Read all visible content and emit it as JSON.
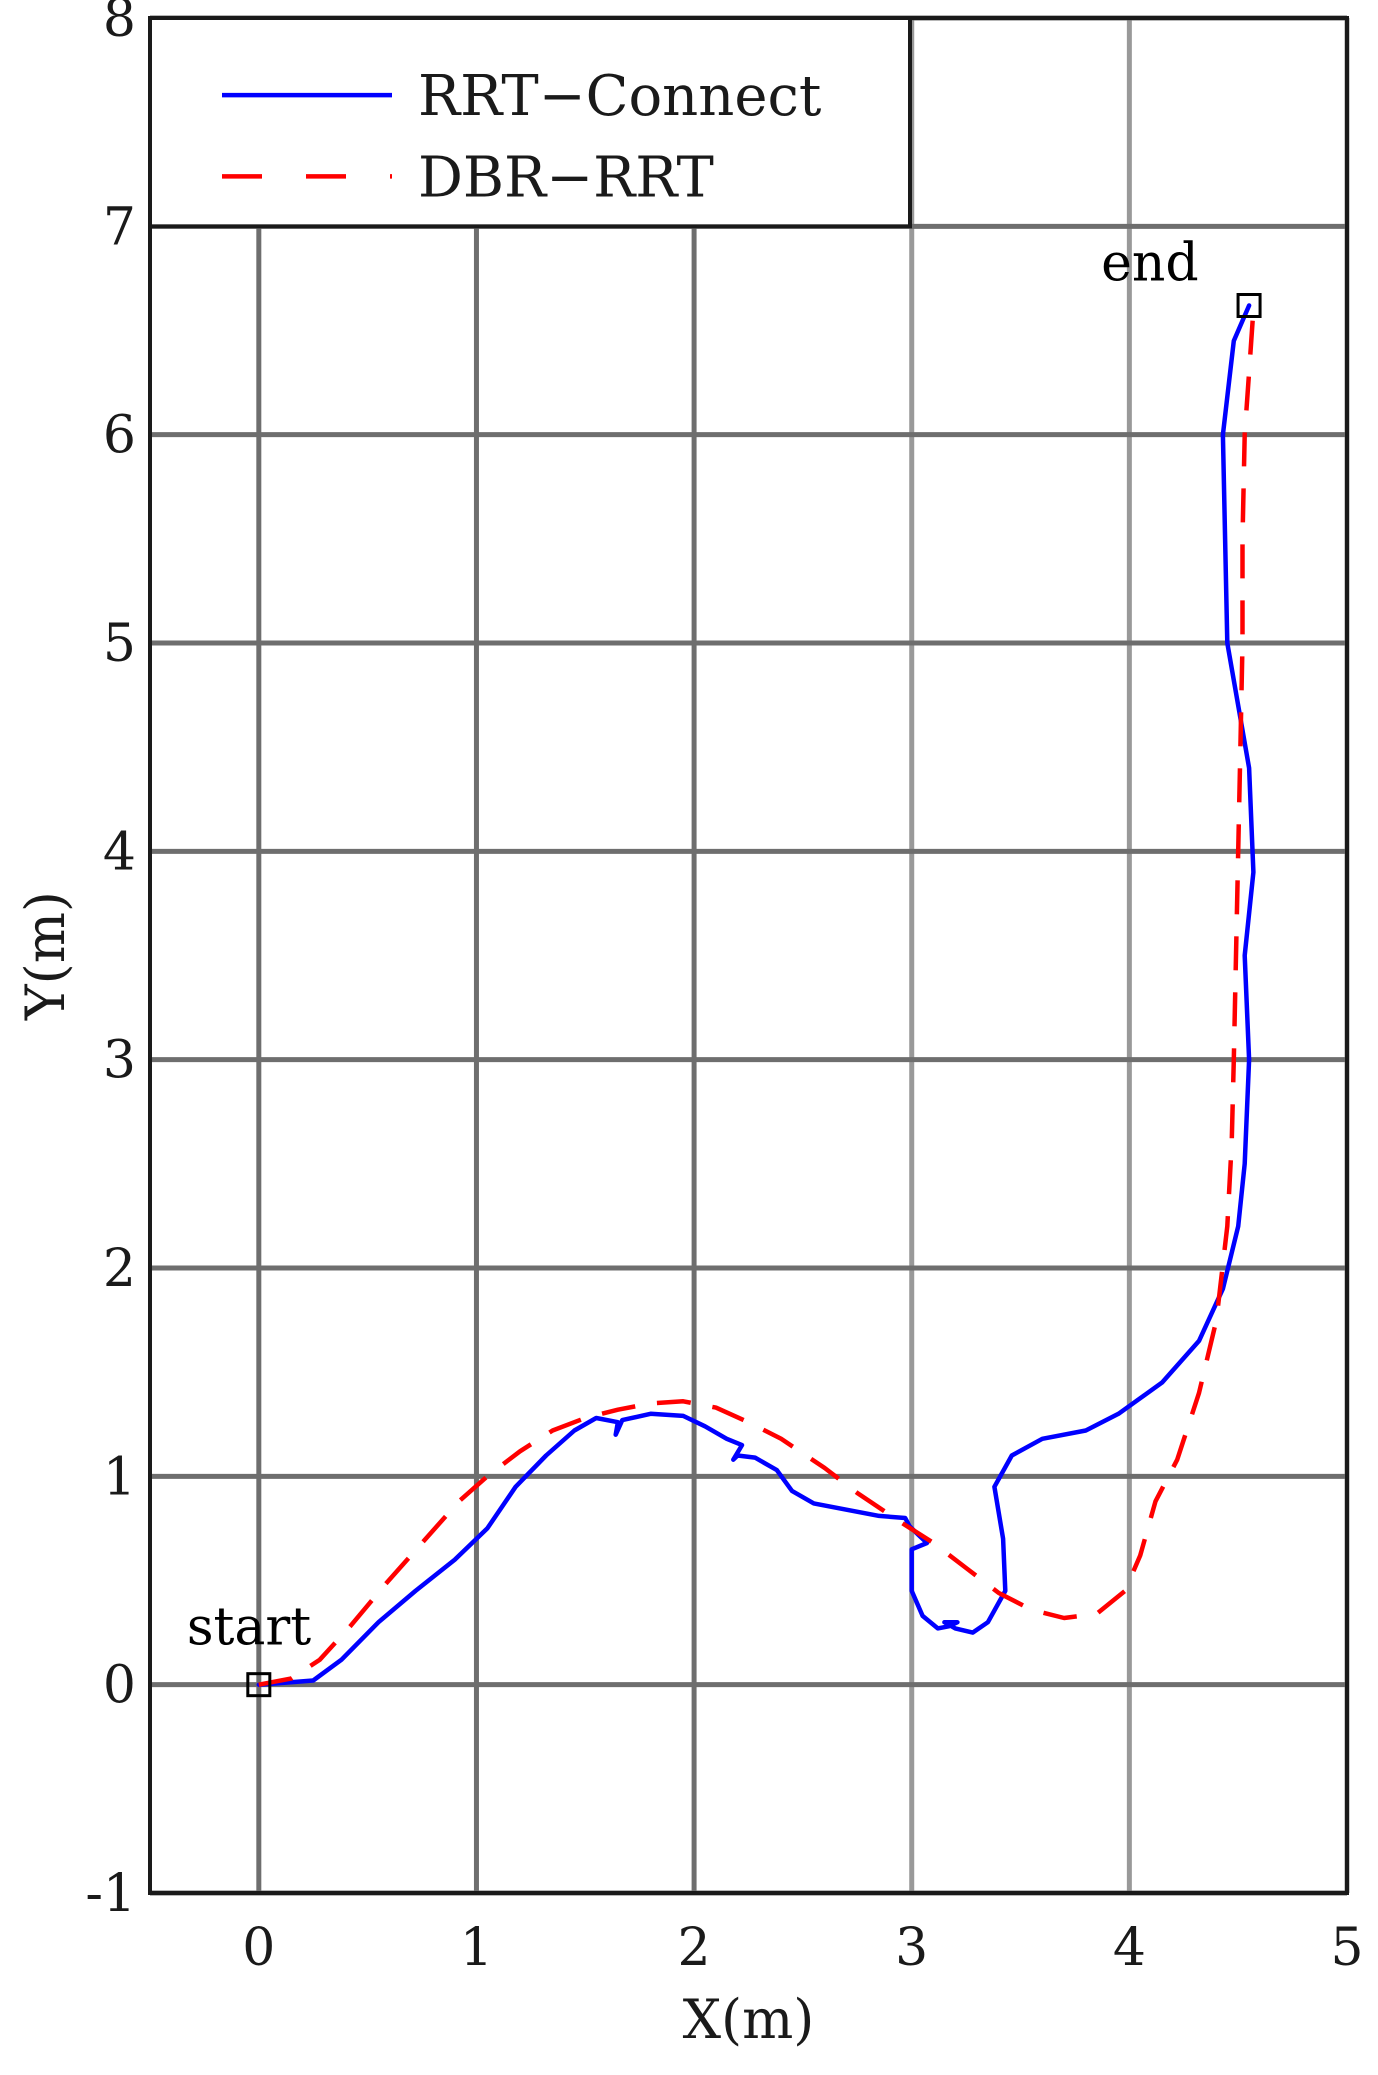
{
  "chart_data": {
    "type": "line",
    "xlabel": "X(m)",
    "ylabel": "Y(m)",
    "xlim": [
      -0.5,
      5
    ],
    "ylim": [
      -1,
      8
    ],
    "xticks": [
      "0",
      "1",
      "2",
      "3",
      "4",
      "5"
    ],
    "yticks": [
      "-1",
      "0",
      "1",
      "2",
      "3",
      "4",
      "5",
      "6",
      "7",
      "8"
    ],
    "grid": true,
    "legend_position": "top-left",
    "series": [
      {
        "name": "RRT−Connect",
        "color": "#0000ff",
        "style": "solid",
        "points": [
          [
            0.0,
            0.0
          ],
          [
            0.25,
            0.02
          ],
          [
            0.38,
            0.12
          ],
          [
            0.55,
            0.3
          ],
          [
            0.72,
            0.45
          ],
          [
            0.9,
            0.6
          ],
          [
            1.05,
            0.75
          ],
          [
            1.18,
            0.95
          ],
          [
            1.32,
            1.1
          ],
          [
            1.45,
            1.22
          ],
          [
            1.55,
            1.28
          ],
          [
            1.65,
            1.26
          ],
          [
            1.64,
            1.2
          ],
          [
            1.67,
            1.27
          ],
          [
            1.8,
            1.3
          ],
          [
            1.95,
            1.29
          ],
          [
            2.05,
            1.24
          ],
          [
            2.15,
            1.18
          ],
          [
            2.22,
            1.15
          ],
          [
            2.18,
            1.08
          ],
          [
            2.2,
            1.1
          ],
          [
            2.28,
            1.09
          ],
          [
            2.38,
            1.03
          ],
          [
            2.45,
            0.93
          ],
          [
            2.55,
            0.87
          ],
          [
            2.7,
            0.84
          ],
          [
            2.85,
            0.81
          ],
          [
            2.97,
            0.8
          ],
          [
            2.99,
            0.76
          ],
          [
            3.03,
            0.72
          ],
          [
            3.07,
            0.68
          ],
          [
            3.0,
            0.65
          ],
          [
            3.0,
            0.45
          ],
          [
            3.05,
            0.33
          ],
          [
            3.12,
            0.27
          ],
          [
            3.17,
            0.28
          ],
          [
            3.21,
            0.3
          ],
          [
            3.15,
            0.3
          ],
          [
            3.2,
            0.27
          ],
          [
            3.28,
            0.25
          ],
          [
            3.35,
            0.3
          ],
          [
            3.43,
            0.45
          ],
          [
            3.42,
            0.7
          ],
          [
            3.38,
            0.95
          ],
          [
            3.46,
            1.1
          ],
          [
            3.6,
            1.18
          ],
          [
            3.8,
            1.22
          ],
          [
            3.95,
            1.3
          ],
          [
            4.15,
            1.45
          ],
          [
            4.32,
            1.65
          ],
          [
            4.43,
            1.9
          ],
          [
            4.5,
            2.2
          ],
          [
            4.53,
            2.5
          ],
          [
            4.55,
            3.0
          ],
          [
            4.53,
            3.5
          ],
          [
            4.57,
            3.9
          ],
          [
            4.55,
            4.4
          ],
          [
            4.5,
            4.7
          ],
          [
            4.45,
            5.0
          ],
          [
            4.44,
            5.5
          ],
          [
            4.43,
            6.0
          ],
          [
            4.48,
            6.45
          ],
          [
            4.55,
            6.62
          ]
        ]
      },
      {
        "name": "DBR−RRT",
        "color": "#ff0000",
        "style": "dashed",
        "points": [
          [
            0.0,
            0.0
          ],
          [
            0.15,
            0.03
          ],
          [
            0.28,
            0.12
          ],
          [
            0.42,
            0.28
          ],
          [
            0.58,
            0.48
          ],
          [
            0.75,
            0.68
          ],
          [
            0.92,
            0.88
          ],
          [
            1.05,
            1.0
          ],
          [
            1.2,
            1.12
          ],
          [
            1.35,
            1.22
          ],
          [
            1.5,
            1.28
          ],
          [
            1.65,
            1.32
          ],
          [
            1.8,
            1.35
          ],
          [
            1.95,
            1.36
          ],
          [
            2.1,
            1.33
          ],
          [
            2.25,
            1.26
          ],
          [
            2.4,
            1.18
          ],
          [
            2.6,
            1.04
          ],
          [
            2.75,
            0.92
          ],
          [
            2.95,
            0.78
          ],
          [
            3.1,
            0.68
          ],
          [
            3.25,
            0.56
          ],
          [
            3.4,
            0.44
          ],
          [
            3.55,
            0.36
          ],
          [
            3.7,
            0.32
          ],
          [
            3.85,
            0.34
          ],
          [
            3.98,
            0.45
          ],
          [
            4.05,
            0.62
          ],
          [
            4.12,
            0.88
          ],
          [
            4.22,
            1.08
          ],
          [
            4.32,
            1.4
          ],
          [
            4.4,
            1.75
          ],
          [
            4.45,
            2.2
          ],
          [
            4.47,
            2.6
          ],
          [
            4.48,
            3.0
          ],
          [
            4.49,
            3.5
          ],
          [
            4.5,
            4.0
          ],
          [
            4.51,
            4.5
          ],
          [
            4.52,
            5.0
          ],
          [
            4.52,
            5.5
          ],
          [
            4.53,
            6.0
          ],
          [
            4.55,
            6.3
          ],
          [
            4.57,
            6.6
          ]
        ]
      }
    ],
    "annotations": [
      {
        "text": "start",
        "x": 0.0,
        "y": 0.0
      },
      {
        "text": "end",
        "x": 4.55,
        "y": 6.62
      }
    ]
  }
}
